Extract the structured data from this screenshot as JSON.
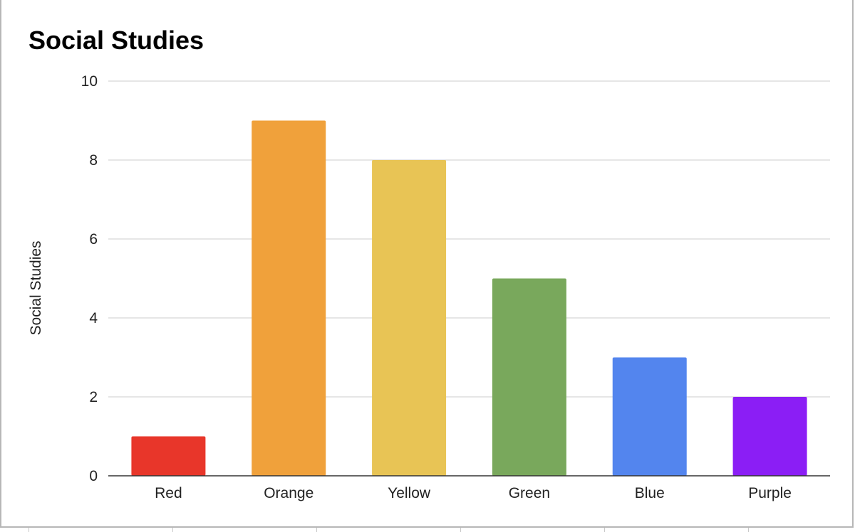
{
  "chart_data": {
    "type": "bar",
    "title": "Social Studies",
    "ylabel": "Social Studies",
    "xlabel": "",
    "categories": [
      "Red",
      "Orange",
      "Yellow",
      "Green",
      "Blue",
      "Purple"
    ],
    "values": [
      1,
      9,
      8,
      5,
      3,
      2
    ],
    "colors": [
      "#e8362a",
      "#f0a13b",
      "#e8c455",
      "#79a85c",
      "#5385ee",
      "#8b1ef5"
    ],
    "ylim": [
      0,
      10
    ],
    "yticks": [
      "0",
      "2",
      "4",
      "6",
      "8",
      "10"
    ],
    "grid": true,
    "legend": "none"
  }
}
